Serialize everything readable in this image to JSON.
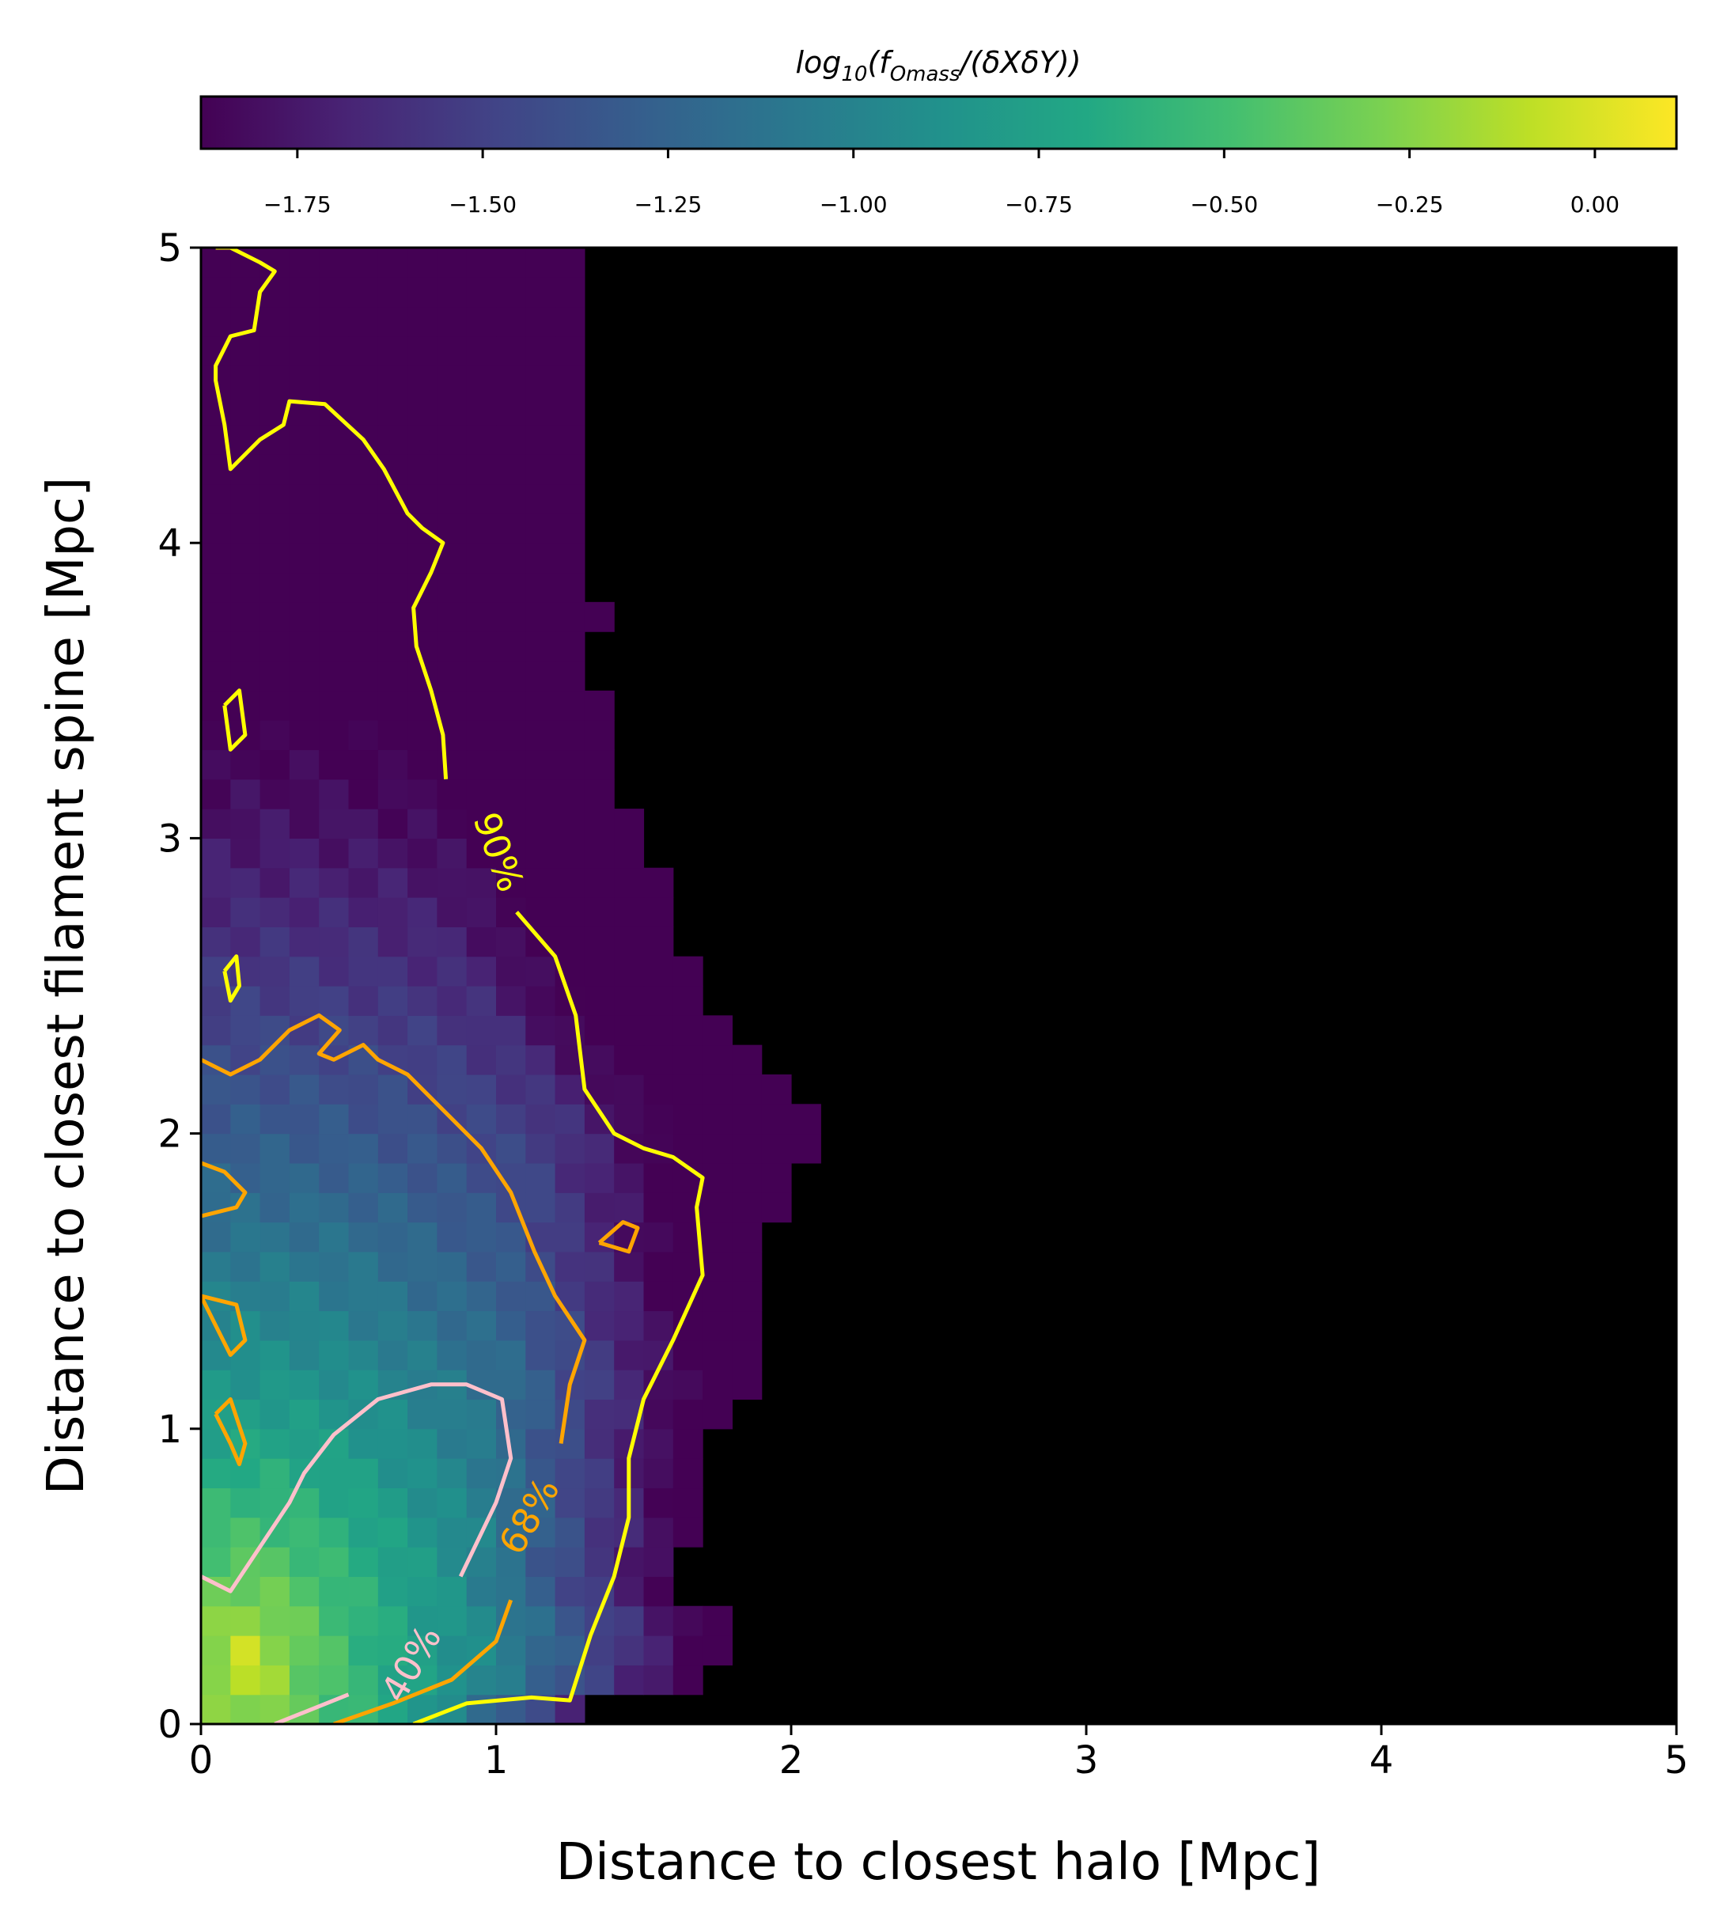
{
  "chart_data": {
    "type": "heatmap",
    "xlabel": "Distance to closest halo [Mpc]",
    "ylabel": "Distance to closest filament spine [Mpc]",
    "xlim": [
      0,
      5
    ],
    "ylim": [
      0,
      5
    ],
    "xticks": [
      0,
      1,
      2,
      3,
      4,
      5
    ],
    "yticks": [
      0,
      1,
      2,
      3,
      4,
      5
    ],
    "xtick_labels": [
      "0",
      "1",
      "2",
      "3",
      "4",
      "5"
    ],
    "ytick_labels": [
      "0",
      "1",
      "2",
      "3",
      "4",
      "5"
    ],
    "grid": false,
    "background": "#000000",
    "colormap": "viridis",
    "colorbar": {
      "label": "log10(fOmass/(δXδY))",
      "label_parts": {
        "main": "log",
        "sub1": "10",
        "mid": "(f",
        "sub2": "Omass",
        "end": "/(δXδY))"
      },
      "orientation": "horizontal",
      "position": "top",
      "range": [
        -1.88,
        0.11
      ],
      "ticks": [
        -1.75,
        -1.5,
        -1.25,
        -1.0,
        -0.75,
        -0.5,
        -0.25,
        0.0
      ],
      "tick_labels": [
        "−1.75",
        "−1.50",
        "−1.25",
        "−1.00",
        "−0.75",
        "−0.50",
        "−0.25",
        "0.00"
      ]
    },
    "heatmap_profile": {
      "bin_size": 0.1,
      "description_values": "log10 mass fraction per bin; peak near (0.1, 0.2), decreasing with distance; empty bins shown black",
      "x_extent_by_row_y": [
        [
          0.0,
          1.3
        ],
        [
          0.1,
          1.7
        ],
        [
          0.2,
          1.8
        ],
        [
          0.3,
          1.8
        ],
        [
          0.4,
          1.6
        ],
        [
          0.5,
          1.6
        ],
        [
          0.6,
          1.7
        ],
        [
          0.7,
          1.7
        ],
        [
          0.8,
          1.7
        ],
        [
          0.9,
          1.7
        ],
        [
          1.0,
          1.8
        ],
        [
          1.1,
          1.9
        ],
        [
          1.2,
          1.9
        ],
        [
          1.3,
          1.9
        ],
        [
          1.4,
          1.9
        ],
        [
          1.5,
          1.9
        ],
        [
          1.6,
          1.9
        ],
        [
          1.7,
          2.0
        ],
        [
          1.8,
          2.0
        ],
        [
          1.9,
          2.1
        ],
        [
          2.0,
          2.1
        ],
        [
          2.1,
          2.0
        ],
        [
          2.2,
          1.9
        ],
        [
          2.3,
          1.8
        ],
        [
          2.4,
          1.7
        ],
        [
          2.5,
          1.7
        ],
        [
          2.6,
          1.6
        ],
        [
          2.7,
          1.6
        ],
        [
          2.8,
          1.6
        ],
        [
          2.9,
          1.5
        ],
        [
          3.0,
          1.5
        ],
        [
          3.1,
          1.4
        ],
        [
          3.2,
          1.4
        ],
        [
          3.3,
          1.4
        ],
        [
          3.4,
          1.4
        ],
        [
          3.5,
          1.3
        ],
        [
          3.6,
          1.3
        ],
        [
          3.7,
          1.4
        ],
        [
          3.8,
          1.3
        ],
        [
          3.9,
          1.3
        ],
        [
          4.0,
          1.3
        ],
        [
          4.1,
          1.3
        ],
        [
          4.2,
          1.3
        ],
        [
          4.3,
          1.3
        ],
        [
          4.4,
          1.3
        ],
        [
          4.5,
          1.3
        ],
        [
          4.6,
          1.3
        ],
        [
          4.7,
          1.3
        ],
        [
          4.8,
          1.3
        ],
        [
          4.9,
          1.3
        ]
      ]
    },
    "contours": [
      {
        "label": "90%",
        "color": "#ffff00",
        "label_at": [
          1.0,
          2.95
        ],
        "lines": [
          [
            [
              0.72,
              0.0
            ],
            [
              0.9,
              0.07
            ],
            [
              1.12,
              0.09
            ],
            [
              1.25,
              0.08
            ],
            [
              1.32,
              0.3
            ],
            [
              1.4,
              0.5
            ],
            [
              1.45,
              0.7
            ],
            [
              1.45,
              0.9
            ],
            [
              1.5,
              1.1
            ],
            [
              1.6,
              1.3
            ],
            [
              1.7,
              1.52
            ],
            [
              1.68,
              1.75
            ],
            [
              1.7,
              1.85
            ],
            [
              1.6,
              1.92
            ],
            [
              1.5,
              1.95
            ],
            [
              1.4,
              2.0
            ],
            [
              1.3,
              2.15
            ],
            [
              1.27,
              2.4
            ],
            [
              1.2,
              2.6
            ],
            [
              1.07,
              2.75
            ]
          ],
          [
            [
              0.83,
              3.2
            ],
            [
              0.82,
              3.35
            ],
            [
              0.78,
              3.5
            ],
            [
              0.73,
              3.65
            ],
            [
              0.72,
              3.78
            ],
            [
              0.78,
              3.9
            ],
            [
              0.82,
              4.0
            ],
            [
              0.75,
              4.05
            ],
            [
              0.7,
              4.1
            ],
            [
              0.62,
              4.25
            ],
            [
              0.55,
              4.35
            ],
            [
              0.42,
              4.47
            ],
            [
              0.3,
              4.48
            ],
            [
              0.28,
              4.4
            ],
            [
              0.2,
              4.35
            ],
            [
              0.1,
              4.25
            ],
            [
              0.08,
              4.4
            ],
            [
              0.05,
              4.55
            ],
            [
              0.05,
              4.6
            ],
            [
              0.1,
              4.7
            ],
            [
              0.18,
              4.72
            ],
            [
              0.2,
              4.85
            ],
            [
              0.25,
              4.92
            ],
            [
              0.2,
              4.95
            ],
            [
              0.1,
              5.0
            ],
            [
              0.05,
              5.0
            ]
          ],
          [
            [
              0.08,
              3.45
            ],
            [
              0.13,
              3.5
            ],
            [
              0.15,
              3.35
            ],
            [
              0.1,
              3.3
            ],
            [
              0.08,
              3.45
            ]
          ],
          [
            [
              0.08,
              2.55
            ],
            [
              0.12,
              2.6
            ],
            [
              0.13,
              2.5
            ],
            [
              0.1,
              2.45
            ],
            [
              0.08,
              2.55
            ]
          ]
        ]
      },
      {
        "label": "68%",
        "color": "#ffa500",
        "label_at": [
          1.12,
          0.7
        ],
        "lines": [
          [
            [
              0.45,
              0.0
            ],
            [
              0.65,
              0.07
            ],
            [
              0.85,
              0.15
            ],
            [
              1.0,
              0.28
            ],
            [
              1.05,
              0.42
            ]
          ],
          [
            [
              1.22,
              0.95
            ],
            [
              1.25,
              1.15
            ],
            [
              1.3,
              1.3
            ],
            [
              1.2,
              1.45
            ],
            [
              1.13,
              1.6
            ],
            [
              1.05,
              1.8
            ],
            [
              0.95,
              1.95
            ],
            [
              0.85,
              2.05
            ],
            [
              0.7,
              2.2
            ],
            [
              0.6,
              2.25
            ],
            [
              0.55,
              2.3
            ],
            [
              0.45,
              2.25
            ],
            [
              0.4,
              2.27
            ],
            [
              0.47,
              2.35
            ],
            [
              0.4,
              2.4
            ],
            [
              0.3,
              2.35
            ],
            [
              0.2,
              2.25
            ],
            [
              0.1,
              2.2
            ],
            [
              0.0,
              2.25
            ]
          ],
          [
            [
              1.35,
              1.63
            ],
            [
              1.43,
              1.7
            ],
            [
              1.48,
              1.68
            ],
            [
              1.45,
              1.6
            ],
            [
              1.35,
              1.63
            ]
          ],
          [
            [
              0.0,
              1.9
            ],
            [
              0.08,
              1.87
            ],
            [
              0.15,
              1.8
            ],
            [
              0.12,
              1.75
            ],
            [
              0.0,
              1.72
            ]
          ],
          [
            [
              0.0,
              1.45
            ],
            [
              0.12,
              1.42
            ],
            [
              0.15,
              1.3
            ],
            [
              0.1,
              1.25
            ],
            [
              0.05,
              1.35
            ],
            [
              0.0,
              1.45
            ]
          ],
          [
            [
              0.05,
              1.05
            ],
            [
              0.1,
              0.95
            ],
            [
              0.13,
              0.88
            ],
            [
              0.15,
              0.95
            ],
            [
              0.1,
              1.1
            ],
            [
              0.05,
              1.05
            ]
          ]
        ]
      },
      {
        "label": "40%",
        "color": "#ffc0cb",
        "label_at": [
          0.72,
          0.2
        ],
        "lines": [
          [
            [
              0.25,
              0.0
            ],
            [
              0.5,
              0.1
            ]
          ],
          [
            [
              0.88,
              0.5
            ],
            [
              1.0,
              0.75
            ],
            [
              1.05,
              0.9
            ],
            [
              1.02,
              1.1
            ],
            [
              0.9,
              1.15
            ],
            [
              0.78,
              1.15
            ],
            [
              0.6,
              1.1
            ],
            [
              0.45,
              0.98
            ],
            [
              0.35,
              0.85
            ],
            [
              0.3,
              0.75
            ],
            [
              0.2,
              0.6
            ],
            [
              0.1,
              0.45
            ],
            [
              0.0,
              0.5
            ]
          ]
        ]
      }
    ]
  }
}
